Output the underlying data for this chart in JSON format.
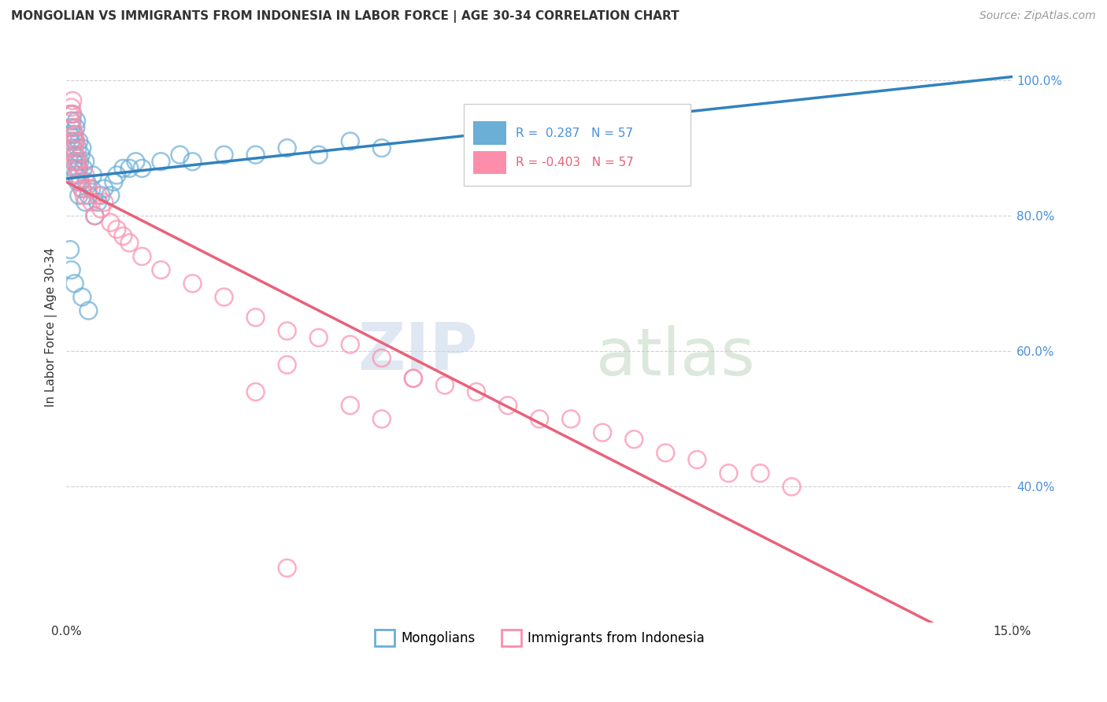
{
  "title": "MONGOLIAN VS IMMIGRANTS FROM INDONESIA IN LABOR FORCE | AGE 30-34 CORRELATION CHART",
  "source": "Source: ZipAtlas.com",
  "ylabel": "In Labor Force | Age 30-34",
  "legend_mongolians": "Mongolians",
  "legend_indonesia": "Immigrants from Indonesia",
  "r_mongolian": 0.287,
  "n_mongolian": 57,
  "r_indonesia": -0.403,
  "n_indonesia": 57,
  "mongolian_color": "#6baed6",
  "indonesia_color": "#fc8eac",
  "mongolian_line_color": "#3182bd",
  "indonesia_line_color": "#e8627a",
  "xlim": [
    0,
    15
  ],
  "ylim": [
    20,
    107
  ],
  "yticks": [
    40,
    60,
    80,
    100
  ],
  "ytick_labels": [
    "40.0%",
    "60.0%",
    "80.0%",
    "100.0%"
  ],
  "xtick_labels": [
    "0.0%",
    "15.0%"
  ],
  "mongolian_x": [
    0.05,
    0.07,
    0.08,
    0.09,
    0.1,
    0.1,
    0.11,
    0.12,
    0.12,
    0.13,
    0.14,
    0.15,
    0.15,
    0.16,
    0.17,
    0.18,
    0.18,
    0.19,
    0.2,
    0.2,
    0.21,
    0.22,
    0.23,
    0.25,
    0.25,
    0.27,
    0.3,
    0.3,
    0.32,
    0.35,
    0.4,
    0.42,
    0.45,
    0.5,
    0.55,
    0.6,
    0.7,
    0.75,
    0.8,
    0.9,
    1.0,
    1.1,
    1.2,
    1.5,
    1.8,
    2.0,
    2.5,
    3.0,
    3.5,
    4.0,
    4.5,
    5.0,
    0.06,
    0.08,
    0.13,
    0.25,
    0.35
  ],
  "mongolian_y": [
    92,
    91,
    93,
    94,
    95,
    90,
    88,
    92,
    87,
    89,
    91,
    93,
    86,
    94,
    88,
    90,
    85,
    87,
    91,
    83,
    88,
    85,
    89,
    90,
    84,
    87,
    88,
    82,
    85,
    83,
    84,
    86,
    80,
    82,
    83,
    84,
    83,
    85,
    86,
    87,
    87,
    88,
    87,
    88,
    89,
    88,
    89,
    89,
    90,
    89,
    91,
    90,
    75,
    72,
    70,
    68,
    66
  ],
  "indonesia_x": [
    0.05,
    0.07,
    0.08,
    0.09,
    0.1,
    0.1,
    0.11,
    0.12,
    0.13,
    0.14,
    0.15,
    0.15,
    0.16,
    0.18,
    0.2,
    0.22,
    0.25,
    0.28,
    0.3,
    0.35,
    0.4,
    0.45,
    0.5,
    0.55,
    0.6,
    0.7,
    0.8,
    0.9,
    1.0,
    1.2,
    1.5,
    2.0,
    2.5,
    3.0,
    3.5,
    4.0,
    4.5,
    5.0,
    5.5,
    6.0,
    6.5,
    7.0,
    7.5,
    8.0,
    8.5,
    9.0,
    9.5,
    10.0,
    10.5,
    11.0,
    11.5,
    3.5,
    5.5,
    3.0,
    4.5,
    5.0,
    3.5
  ],
  "indonesia_y": [
    95,
    94,
    96,
    95,
    93,
    97,
    91,
    90,
    92,
    88,
    89,
    91,
    87,
    88,
    86,
    85,
    84,
    83,
    86,
    84,
    82,
    80,
    83,
    81,
    82,
    79,
    78,
    77,
    76,
    74,
    72,
    70,
    68,
    65,
    63,
    62,
    61,
    59,
    56,
    55,
    54,
    52,
    50,
    50,
    48,
    47,
    45,
    44,
    42,
    42,
    40,
    58,
    56,
    54,
    52,
    50,
    28
  ]
}
